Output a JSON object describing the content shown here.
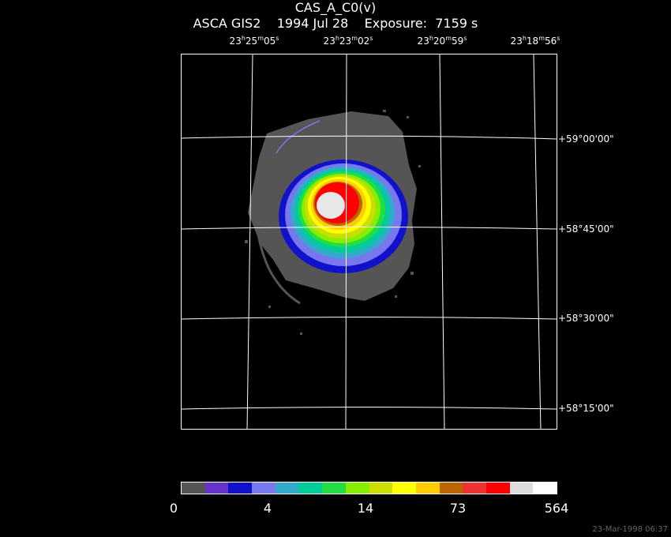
{
  "header": {
    "title": "CAS_A_C0(v)",
    "subtitle": "ASCA GIS2    1994 Jul 28    Exposure:  7159 s"
  },
  "ra_labels": [
    {
      "h": "23",
      "m": "25",
      "s": "05"
    },
    {
      "h": "23",
      "m": "23",
      "s": "02"
    },
    {
      "h": "23",
      "m": "20",
      "s": "59"
    },
    {
      "h": "23",
      "m": "18",
      "s": "56"
    }
  ],
  "dec_labels": [
    "+59°00'00\"",
    "+58°45'00\"",
    "+58°30'00\"",
    "+58°15'00\""
  ],
  "colorbar": {
    "colors": [
      "#555555",
      "#6633cc",
      "#1111cc",
      "#7777ee",
      "#33aacc",
      "#00cc99",
      "#22dd44",
      "#88ee00",
      "#ccdd00",
      "#ffff00",
      "#ffcc00",
      "#bb6600",
      "#ee3333",
      "#ff0000",
      "#dddddd",
      "#ffffff"
    ],
    "tick_labels": [
      "0",
      "4",
      "14",
      "73",
      "564"
    ]
  },
  "timestamp": "23-Mar-1998 06:37"
}
